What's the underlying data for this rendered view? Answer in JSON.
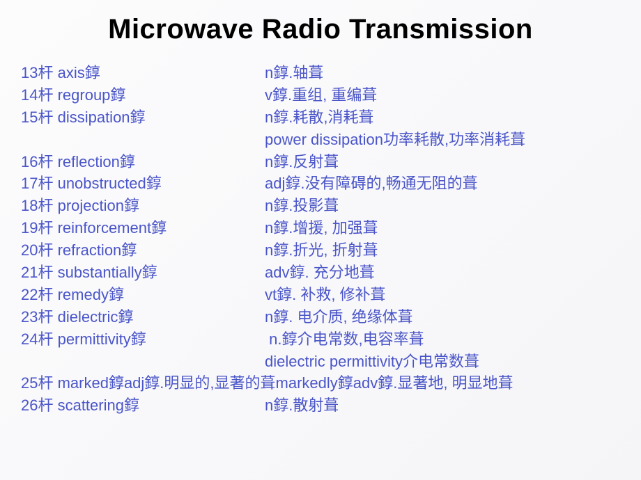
{
  "title": "Microwave Radio Transmission",
  "text_color": "#4a55c8",
  "title_color": "#000000",
  "rows": [
    {
      "term": "13杆 axis錞",
      "def": "n錞.轴葺"
    },
    {
      "term": "14杆 regroup錞",
      "def": "v錞.重组, 重编葺"
    },
    {
      "term": "15杆 dissipation錞",
      "def": "n錞.耗散,消耗葺"
    },
    {
      "term": "",
      "def": "power dissipation功率耗散,功率消耗葺"
    },
    {
      "term": "16杆 reflection錞",
      "def": "n錞.反射葺"
    },
    {
      "term": "17杆 unobstructed錞",
      "def": "adj錞.没有障碍的,畅通无阻的葺"
    },
    {
      "term": "18杆 projection錞",
      "def": "n錞.投影葺"
    },
    {
      "term": "19杆 reinforcement錞",
      "def": "n錞.增援, 加强葺"
    },
    {
      "term": "20杆 refraction錞",
      "def": "n錞.折光, 折射葺"
    },
    {
      "term": "21杆 substantially錞",
      "def": "adv錞. 充分地葺"
    },
    {
      "term": "22杆 remedy錞",
      "def": "vt錞. 补救, 修补葺"
    },
    {
      "term": "23杆 dielectric錞",
      "def": "n錞. 电介质, 绝缘体葺"
    },
    {
      "term": "24杆 permittivity錞",
      "def": " n.錞介电常数,电容率葺"
    },
    {
      "term": "",
      "def": "dielectric permittivity介电常数葺"
    },
    {
      "term": "25杆 marked錞adj錞.明显的,显著的葺markedly錞adv錞.显著地, 明显地葺",
      "def": "",
      "full": true
    },
    {
      "term": "26杆 scattering錞",
      "def": "n錞.散射葺"
    }
  ]
}
